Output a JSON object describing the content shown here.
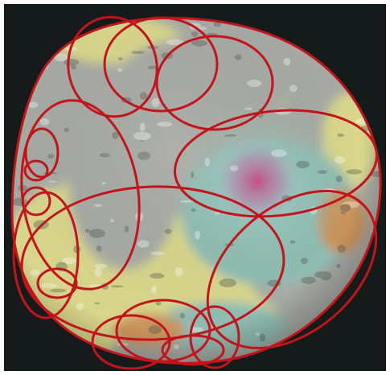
{
  "image": {
    "subject": "geoid-globe-with-red-ellipse-overlays",
    "colors": {
      "background": "#141b1a",
      "frame": "#ffffff",
      "ellipse_stroke": "#c4141b",
      "globe_gray": "#a7aaa4",
      "globe_yellow": "#d8d68b",
      "globe_teal": "#8fbcb2",
      "globe_pink": "#c8457e",
      "globe_orange": "#c9935c"
    }
  }
}
